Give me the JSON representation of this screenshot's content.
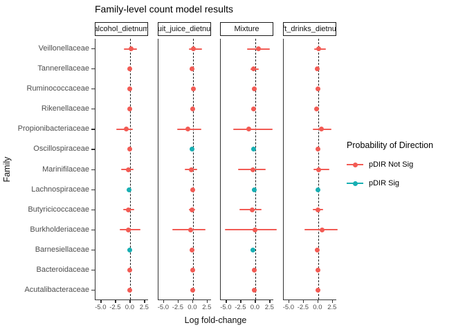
{
  "title": "Family-level count model results",
  "y_axis_title": "Family",
  "x_axis_title": "Log fold-change",
  "legend": {
    "title": "Probability of Direction",
    "items": [
      {
        "label": "pDIR Not Sig",
        "key": "not_sig"
      },
      {
        "label": "pDIR Sig",
        "key": "sig"
      }
    ]
  },
  "colors": {
    "not_sig": "#F25B54",
    "sig": "#18AFB3",
    "axis_text": "#4d4d4d",
    "axis_line": "#333333",
    "zero_line": "#1c1c1c"
  },
  "chart_data": {
    "type": "pointrange-forest",
    "title": "Family-level count model results",
    "xlabel": "Log fold-change",
    "ylabel": "Family",
    "x_range": [
      -6.0,
      3.17
    ],
    "x_ticks": [
      -5.0,
      -2.5,
      0.0,
      2.5
    ],
    "x_tick_labels": [
      "-5.0",
      "-2.5",
      "0.0",
      "2.5"
    ],
    "zero_reference_line": 0,
    "legend_position": "right",
    "families": [
      "Veillonellaceae",
      "Tannerellaceae",
      "Ruminococcaceae",
      "Rikenellaceae",
      "Propionibacteriaceae",
      "Oscillospiraceae",
      "Marinifilaceae",
      "Lachnospiraceae",
      "Butyricicoccaceae",
      "Burkholderiaceae",
      "Barnesiellaceae",
      "Bacteroidaceae",
      "Acutalibacteraceae"
    ],
    "facets": [
      {
        "label": "alcohol_dietnum",
        "points": [
          {
            "family": "Veillonellaceae",
            "x": 0.1,
            "lo": -1.1,
            "hi": 1.1,
            "sig": false
          },
          {
            "family": "Tannerellaceae",
            "x": -0.1,
            "lo": -0.45,
            "hi": 0.25,
            "sig": false
          },
          {
            "family": "Ruminococcaceae",
            "x": -0.15,
            "lo": -0.4,
            "hi": 0.15,
            "sig": false
          },
          {
            "family": "Rikenellaceae",
            "x": -0.1,
            "lo": -0.4,
            "hi": 0.25,
            "sig": false
          },
          {
            "family": "Propionibacteriaceae",
            "x": -0.65,
            "lo": -2.4,
            "hi": 0.4,
            "sig": false
          },
          {
            "family": "Oscillospiraceae",
            "x": -0.1,
            "lo": -0.35,
            "hi": 0.15,
            "sig": false
          },
          {
            "family": "Marinifilaceae",
            "x": -0.35,
            "lo": -1.6,
            "hi": 0.5,
            "sig": false
          },
          {
            "family": "Lachnospiraceae",
            "x": -0.2,
            "lo": -0.45,
            "hi": 0.05,
            "sig": true
          },
          {
            "family": "Butyricicoccaceae",
            "x": -0.4,
            "lo": -1.2,
            "hi": 0.7,
            "sig": false
          },
          {
            "family": "Burkholderiaceae",
            "x": -0.3,
            "lo": -1.8,
            "hi": 1.7,
            "sig": false
          },
          {
            "family": "Barnesiellaceae",
            "x": -0.16,
            "lo": -0.5,
            "hi": 0.2,
            "sig": true
          },
          {
            "family": "Bacteroidaceae",
            "x": -0.1,
            "lo": -0.35,
            "hi": 0.2,
            "sig": false
          },
          {
            "family": "Acutalibacteraceae",
            "x": -0.1,
            "lo": -0.4,
            "hi": 0.25,
            "sig": false
          }
        ]
      },
      {
        "label": "uit_juice_dietnu",
        "points": [
          {
            "family": "Veillonellaceae",
            "x": 0.05,
            "lo": -0.7,
            "hi": 1.6,
            "sig": false
          },
          {
            "family": "Tannerellaceae",
            "x": -0.2,
            "lo": -0.55,
            "hi": 0.2,
            "sig": false
          },
          {
            "family": "Ruminococcaceae",
            "x": 0.05,
            "lo": -0.25,
            "hi": 0.3,
            "sig": false
          },
          {
            "family": "Rikenellaceae",
            "x": -0.08,
            "lo": -0.4,
            "hi": 0.3,
            "sig": false
          },
          {
            "family": "Propionibacteriaceae",
            "x": -0.9,
            "lo": -2.7,
            "hi": 1.5,
            "sig": false
          },
          {
            "family": "Oscillospiraceae",
            "x": -0.2,
            "lo": -0.45,
            "hi": 0.05,
            "sig": true
          },
          {
            "family": "Marinifilaceae",
            "x": -0.3,
            "lo": -1.4,
            "hi": 0.7,
            "sig": false
          },
          {
            "family": "Lachnospiraceae",
            "x": 0.0,
            "lo": -0.3,
            "hi": 0.3,
            "sig": false
          },
          {
            "family": "Butyricicoccaceae",
            "x": -0.15,
            "lo": -0.7,
            "hi": 0.35,
            "sig": false
          },
          {
            "family": "Burkholderiaceae",
            "x": -0.4,
            "lo": -3.5,
            "hi": 2.1,
            "sig": false
          },
          {
            "family": "Barnesiellaceae",
            "x": -0.15,
            "lo": -0.5,
            "hi": 0.2,
            "sig": false
          },
          {
            "family": "Bacteroidaceae",
            "x": 0.0,
            "lo": -0.3,
            "hi": 0.3,
            "sig": false
          },
          {
            "family": "Acutalibacteraceae",
            "x": 0.0,
            "lo": -0.4,
            "hi": 0.4,
            "sig": false
          }
        ]
      },
      {
        "label": "Mixture",
        "points": [
          {
            "family": "Veillonellaceae",
            "x": 0.5,
            "lo": -1.5,
            "hi": 2.5,
            "sig": false
          },
          {
            "family": "Tannerellaceae",
            "x": -0.3,
            "lo": -0.9,
            "hi": 0.6,
            "sig": false
          },
          {
            "family": "Ruminococcaceae",
            "x": -0.2,
            "lo": -0.5,
            "hi": 0.15,
            "sig": false
          },
          {
            "family": "Rikenellaceae",
            "x": -0.4,
            "lo": -0.8,
            "hi": 0.1,
            "sig": false
          },
          {
            "family": "Propionibacteriaceae",
            "x": -1.2,
            "lo": -3.8,
            "hi": 2.9,
            "sig": false
          },
          {
            "family": "Oscillospiraceae",
            "x": -0.35,
            "lo": -0.7,
            "hi": 0.0,
            "sig": true
          },
          {
            "family": "Marinifilaceae",
            "x": -0.5,
            "lo": -3.0,
            "hi": 1.7,
            "sig": false
          },
          {
            "family": "Lachnospiraceae",
            "x": -0.25,
            "lo": -0.6,
            "hi": 0.1,
            "sig": true
          },
          {
            "family": "Butyricicoccaceae",
            "x": -0.55,
            "lo": -2.8,
            "hi": 1.0,
            "sig": false
          },
          {
            "family": "Burkholderiaceae",
            "x": -0.15,
            "lo": -5.3,
            "hi": 3.6,
            "sig": false
          },
          {
            "family": "Barnesiellaceae",
            "x": -0.5,
            "lo": -0.9,
            "hi": -0.1,
            "sig": true
          },
          {
            "family": "Bacteroidaceae",
            "x": -0.2,
            "lo": -0.55,
            "hi": 0.2,
            "sig": false
          },
          {
            "family": "Acutalibacteraceae",
            "x": -0.2,
            "lo": -0.6,
            "hi": 0.25,
            "sig": false
          }
        ]
      },
      {
        "label": "ft_drinks_dietnu",
        "points": [
          {
            "family": "Veillonellaceae",
            "x": 0.1,
            "lo": -0.7,
            "hi": 1.35,
            "sig": false
          },
          {
            "family": "Tannerellaceae",
            "x": -0.2,
            "lo": -0.5,
            "hi": 0.15,
            "sig": false
          },
          {
            "family": "Ruminococcaceae",
            "x": -0.1,
            "lo": -0.35,
            "hi": 0.2,
            "sig": false
          },
          {
            "family": "Rikenellaceae",
            "x": -0.25,
            "lo": -0.6,
            "hi": 0.1,
            "sig": false
          },
          {
            "family": "Propionibacteriaceae",
            "x": 0.5,
            "lo": -0.9,
            "hi": 2.3,
            "sig": false
          },
          {
            "family": "Oscillospiraceae",
            "x": -0.1,
            "lo": -0.4,
            "hi": 0.2,
            "sig": false
          },
          {
            "family": "Marinifilaceae",
            "x": 0.05,
            "lo": -0.8,
            "hi": 1.9,
            "sig": false
          },
          {
            "family": "Lachnospiraceae",
            "x": 0.0,
            "lo": -0.3,
            "hi": 0.3,
            "sig": true
          },
          {
            "family": "Butyricicoccaceae",
            "x": 0.0,
            "lo": -0.9,
            "hi": 0.9,
            "sig": false
          },
          {
            "family": "Burkholderiaceae",
            "x": 0.7,
            "lo": -2.4,
            "hi": 3.3,
            "sig": false
          },
          {
            "family": "Barnesiellaceae",
            "x": -0.2,
            "lo": -0.55,
            "hi": 0.15,
            "sig": false
          },
          {
            "family": "Bacteroidaceae",
            "x": -0.1,
            "lo": -0.4,
            "hi": 0.2,
            "sig": false
          },
          {
            "family": "Acutalibacteraceae",
            "x": 0.0,
            "lo": -0.35,
            "hi": 0.35,
            "sig": false
          }
        ]
      }
    ]
  }
}
